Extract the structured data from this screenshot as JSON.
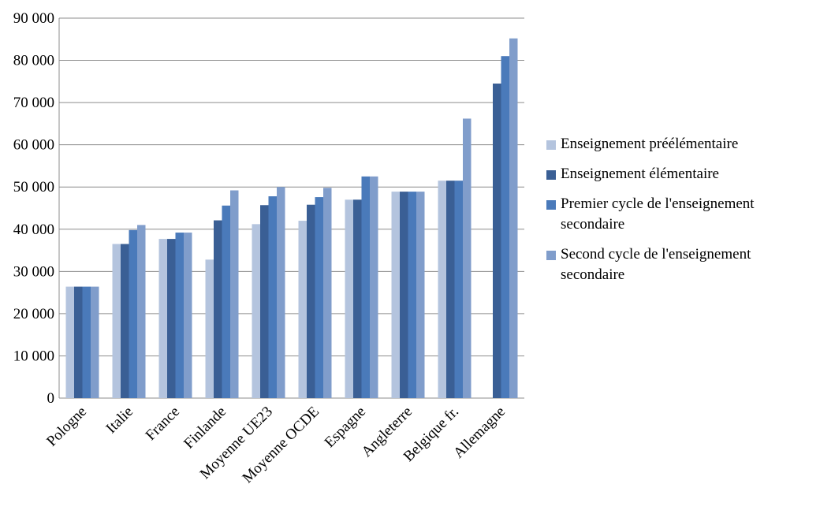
{
  "chart_data": {
    "type": "bar",
    "categories": [
      "Pologne",
      "Italie",
      "France",
      "Finlande",
      "Moyenne UE23",
      "Moyenne OCDE",
      "Espagne",
      "Angleterre",
      "Belgique fr.",
      "Allemagne"
    ],
    "series": [
      {
        "name": "Enseignement préélémentaire",
        "color": "#b4c4de",
        "values": [
          26400,
          36500,
          37700,
          32800,
          41200,
          42000,
          47000,
          48900,
          51500,
          null
        ]
      },
      {
        "name": "Enseignement élémentaire",
        "color": "#3a5f95",
        "values": [
          26400,
          36500,
          37700,
          42100,
          45700,
          45800,
          47000,
          48900,
          51500,
          74500
        ]
      },
      {
        "name": "Premier cycle de l'enseignement secondaire",
        "color": "#4a7aba",
        "values": [
          26400,
          39800,
          39200,
          45600,
          47800,
          47600,
          52500,
          48900,
          51500,
          81000
        ]
      },
      {
        "name": "Second cycle de l'enseignement secondaire",
        "color": "#809dcb",
        "values": [
          26400,
          41000,
          39200,
          49200,
          50000,
          49800,
          52500,
          48900,
          66200,
          85200
        ]
      }
    ],
    "ylim": [
      0,
      90000
    ],
    "yticks": [
      0,
      {
        "value": 10000,
        "label": "10 000"
      },
      {
        "value": 20000,
        "label": "20 000"
      },
      {
        "value": 30000,
        "label": "30 000"
      },
      {
        "value": 40000,
        "label": "40 000"
      },
      {
        "value": 50000,
        "label": "50 000"
      },
      {
        "value": 60000,
        "label": "60 000"
      },
      {
        "value": 70000,
        "label": "70 000"
      },
      {
        "value": 80000,
        "label": "80 000"
      },
      {
        "value": 90000,
        "label": "90 000"
      }
    ],
    "grid": true,
    "legend": "right"
  }
}
